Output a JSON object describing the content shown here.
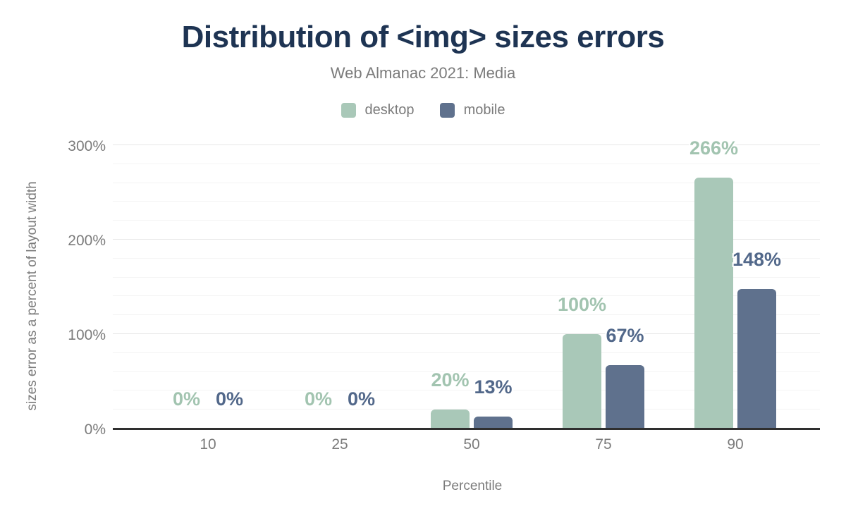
{
  "chart_data": {
    "type": "bar",
    "title": "Distribution of <img> sizes errors",
    "subtitle": "Web Almanac 2021: Media",
    "categories": [
      "10",
      "25",
      "50",
      "75",
      "90"
    ],
    "series": [
      {
        "name": "desktop",
        "color": "#a9c8b8",
        "label_color": "#a2c4b0",
        "values": [
          0,
          0,
          20,
          100,
          266
        ],
        "labels": [
          "0%",
          "0%",
          "20%",
          "100%",
          "266%"
        ]
      },
      {
        "name": "mobile",
        "color": "#5f718d",
        "label_color": "#52688a",
        "values": [
          0,
          0,
          13,
          67,
          148
        ],
        "labels": [
          "0%",
          "0%",
          "13%",
          "67%",
          "148%"
        ]
      }
    ],
    "xlabel": "Percentile",
    "ylabel": "sizes error as a percent of layout width",
    "ylim": [
      0,
      300
    ],
    "yticks": [
      {
        "value": 0,
        "label": "0%"
      },
      {
        "value": 100,
        "label": "100%"
      },
      {
        "value": 200,
        "label": "200%"
      },
      {
        "value": 300,
        "label": "300%"
      }
    ],
    "minor_grid_step": 20,
    "grid": true,
    "legend_position": "top"
  },
  "colors": {
    "title": "#1e3453",
    "muted_text": "#7b7b7b",
    "axis_line": "#2f2f2f",
    "grid_major": "#e7e7e7",
    "grid_minor": "#f4f4f4",
    "background": "#ffffff"
  }
}
